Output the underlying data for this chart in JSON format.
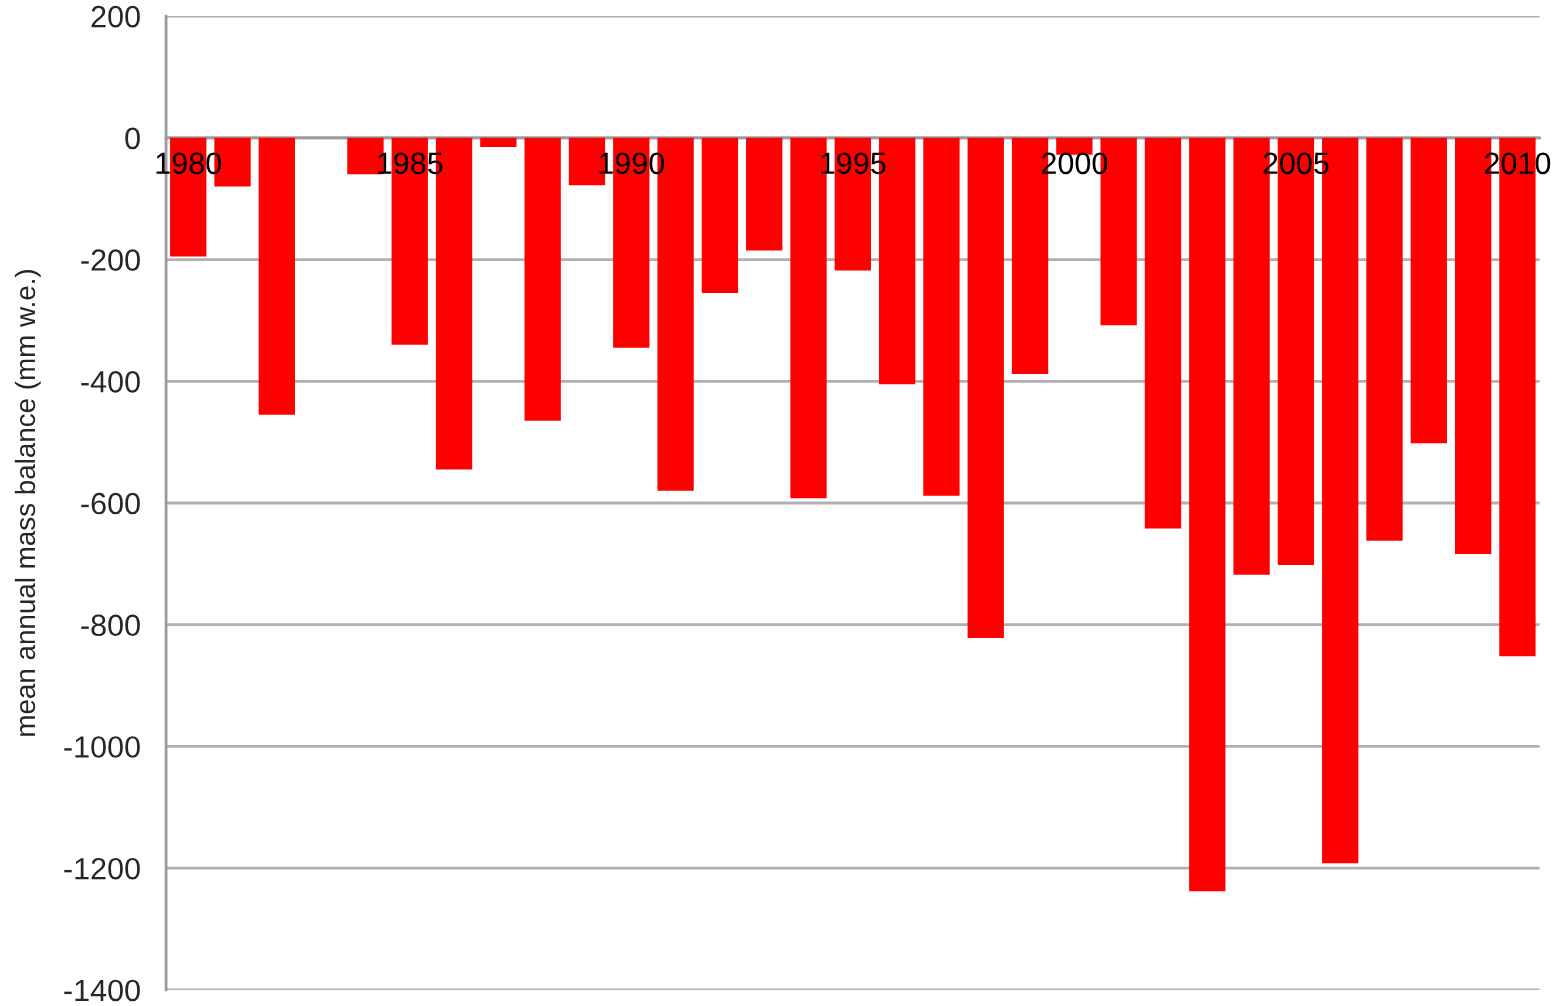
{
  "chart_data": {
    "type": "bar",
    "ylabel": "mean annual mass balance (mm w.e.)",
    "categories": [
      "1980",
      null,
      null,
      null,
      null,
      "1985",
      null,
      null,
      null,
      null,
      "1990",
      null,
      null,
      null,
      null,
      "1995",
      null,
      null,
      null,
      null,
      "2000",
      null,
      null,
      null,
      null,
      "2005",
      null,
      null,
      null,
      null,
      "2010"
    ],
    "values": [
      -195,
      -80,
      -455,
      null,
      -60,
      -340,
      -545,
      -15,
      -465,
      -78,
      -345,
      -580,
      -255,
      -185,
      -592,
      -218,
      -405,
      -588,
      -822,
      -388,
      -28,
      -308,
      -642,
      -1238,
      -718,
      -702,
      -1192,
      -662,
      -502,
      -684,
      -852
    ],
    "color": "#ff0000",
    "ylim": [
      -1400,
      200
    ],
    "yticks": [
      -1400,
      -1200,
      -1000,
      -800,
      -600,
      -400,
      -200,
      0,
      200
    ],
    "grid": "y"
  }
}
